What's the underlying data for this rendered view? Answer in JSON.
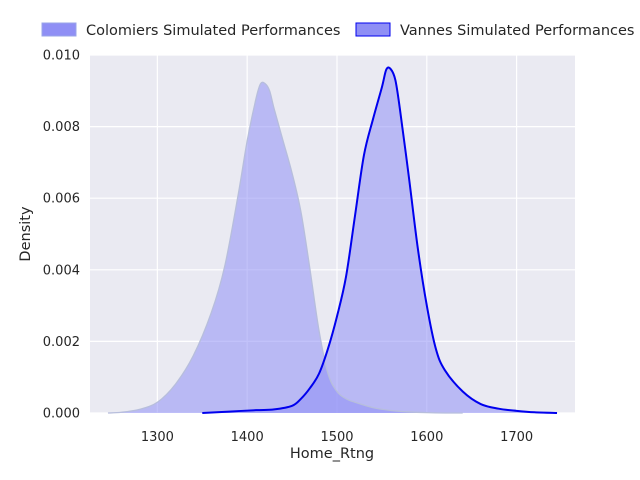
{
  "chart_data": {
    "type": "area",
    "title": "",
    "xlabel": "Home_Rtng",
    "ylabel": "Density",
    "xlim": [
      1225,
      1765
    ],
    "ylim": [
      0,
      0.01
    ],
    "xticks": [
      1300,
      1400,
      1500,
      1600,
      1700
    ],
    "xtick_labels": [
      "1300",
      "1400",
      "1500",
      "1600",
      "1700"
    ],
    "yticks": [
      0,
      0.002,
      0.004,
      0.006,
      0.008,
      0.01
    ],
    "ytick_labels": [
      "0.000",
      "0.002",
      "0.004",
      "0.006",
      "0.008",
      "0.010"
    ],
    "grid": true,
    "legend_position": "top",
    "series": [
      {
        "name": "Colomiers Simulated Performances",
        "fill_color": "#8f8ff5",
        "line_color": "#b7bedc",
        "x": [
          1245,
          1260,
          1280,
          1300,
          1320,
          1340,
          1360,
          1375,
          1390,
          1400,
          1410,
          1415,
          1420,
          1425,
          1430,
          1440,
          1450,
          1460,
          1470,
          1480,
          1490,
          1500,
          1510,
          1520,
          1540,
          1560,
          1580,
          1600,
          1620,
          1640
        ],
        "y": [
          0.0,
          2e-05,
          0.0001,
          0.0003,
          0.0008,
          0.0016,
          0.0028,
          0.0041,
          0.0061,
          0.0076,
          0.0088,
          0.0092,
          0.0092,
          0.009,
          0.0085,
          0.0076,
          0.0067,
          0.0056,
          0.004,
          0.0023,
          0.0011,
          0.0006,
          0.0004,
          0.0003,
          0.00015,
          7e-05,
          3e-05,
          1e-05,
          0.0,
          0.0
        ]
      },
      {
        "name": "Vannes Simulated Performances",
        "fill_color": "#8f8ff5",
        "line_color": "#0000ee",
        "x": [
          1350,
          1380,
          1410,
          1430,
          1450,
          1460,
          1470,
          1480,
          1490,
          1500,
          1510,
          1520,
          1530,
          1540,
          1550,
          1555,
          1560,
          1565,
          1570,
          1580,
          1590,
          1600,
          1610,
          1620,
          1640,
          1660,
          1680,
          1700,
          1720,
          1745
        ],
        "y": [
          0.0,
          4e-05,
          8e-05,
          0.0001,
          0.0002,
          0.0004,
          0.0007,
          0.0011,
          0.0018,
          0.0027,
          0.0038,
          0.0055,
          0.0072,
          0.0082,
          0.0091,
          0.0096,
          0.0096,
          0.0093,
          0.0085,
          0.0066,
          0.0046,
          0.003,
          0.0018,
          0.0012,
          0.0006,
          0.00025,
          0.00012,
          6e-05,
          2e-05,
          0.0
        ]
      }
    ]
  }
}
